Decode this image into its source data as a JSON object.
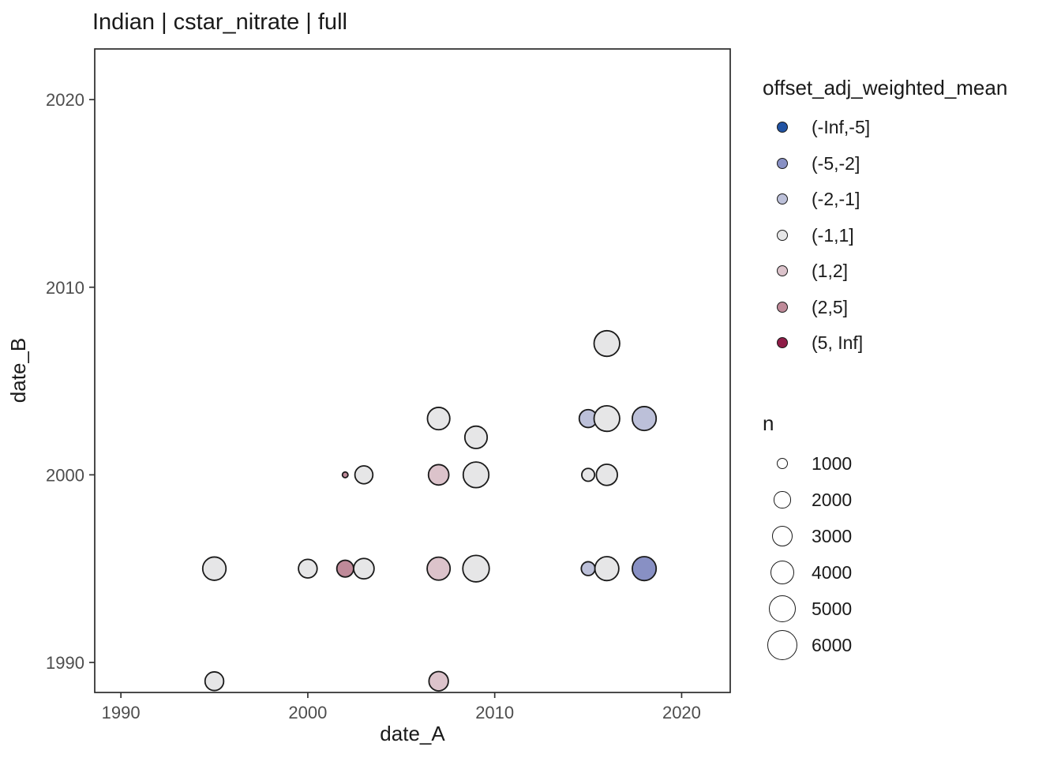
{
  "chart_data": {
    "type": "scatter",
    "title": "Indian | cstar_nitrate | full",
    "xlabel": "date_A",
    "ylabel": "date_B",
    "xlim": [
      1988.6,
      2022.6
    ],
    "ylim": [
      1988.4,
      2022.7
    ],
    "x_ticks": [
      1990,
      2000,
      2010,
      2020
    ],
    "y_ticks": [
      1990,
      2000,
      2010,
      2020
    ],
    "grid": false,
    "legend_position": "right",
    "color_legend": {
      "title": "offset_adj_weighted_mean",
      "bins": [
        "(-Inf,-5]",
        "(-5,-2]",
        "(-2,-1]",
        "(-1,1]",
        "(1,2]",
        "(2,5]",
        "(5, Inf]"
      ],
      "colors": {
        "(-Inf,-5]": "#2153a3",
        "(-5,-2]": "#8890c4",
        "(-2,-1]": "#bcc0d9",
        "(-1,1]": "#e6e6e7",
        "(1,2]": "#dcc3cb",
        "(2,5]": "#bf8a99",
        "(5, Inf]": "#8e1c47"
      }
    },
    "size_legend": {
      "title": "n",
      "values": [
        1000,
        2000,
        3000,
        4000,
        5000,
        6000
      ]
    },
    "points": [
      {
        "x": 1995,
        "y": 1989,
        "bin": "(-1,1]",
        "n": 3200
      },
      {
        "x": 2007,
        "y": 1989,
        "bin": "(1,2]",
        "n": 3400
      },
      {
        "x": 1995,
        "y": 1995,
        "bin": "(-1,1]",
        "n": 4600
      },
      {
        "x": 2000,
        "y": 1995,
        "bin": "(-1,1]",
        "n": 3200
      },
      {
        "x": 2002,
        "y": 1995,
        "bin": "(2,5]",
        "n": 2700
      },
      {
        "x": 2003,
        "y": 1995,
        "bin": "(-1,1]",
        "n": 3700
      },
      {
        "x": 2007,
        "y": 1995,
        "bin": "(1,2]",
        "n": 4500
      },
      {
        "x": 2009,
        "y": 1995,
        "bin": "(-1,1]",
        "n": 5700
      },
      {
        "x": 2015,
        "y": 1995,
        "bin": "(-2,-1]",
        "n": 2000
      },
      {
        "x": 2016,
        "y": 1995,
        "bin": "(-1,1]",
        "n": 4800
      },
      {
        "x": 2018,
        "y": 1995,
        "bin": "(-5,-2]",
        "n": 4800
      },
      {
        "x": 2002,
        "y": 2000,
        "bin": "(2,5]",
        "n": 300
      },
      {
        "x": 2003,
        "y": 2000,
        "bin": "(-1,1]",
        "n": 3000
      },
      {
        "x": 2007,
        "y": 2000,
        "bin": "(1,2]",
        "n": 3700
      },
      {
        "x": 2009,
        "y": 2000,
        "bin": "(-1,1]",
        "n": 5400
      },
      {
        "x": 2015,
        "y": 2000,
        "bin": "(-1,1]",
        "n": 1800
      },
      {
        "x": 2016,
        "y": 2000,
        "bin": "(-1,1]",
        "n": 3900
      },
      {
        "x": 2009,
        "y": 2002,
        "bin": "(-1,1]",
        "n": 4300
      },
      {
        "x": 2007,
        "y": 2003,
        "bin": "(-1,1]",
        "n": 4300
      },
      {
        "x": 2015,
        "y": 2003,
        "bin": "(-2,-1]",
        "n": 3000
      },
      {
        "x": 2016,
        "y": 2003,
        "bin": "(-1,1]",
        "n": 5400
      },
      {
        "x": 2018,
        "y": 2003,
        "bin": "(-2,-1]",
        "n": 4800
      },
      {
        "x": 2016,
        "y": 2007,
        "bin": "(-1,1]",
        "n": 5400
      }
    ]
  }
}
